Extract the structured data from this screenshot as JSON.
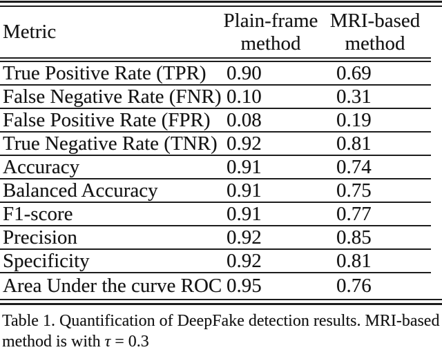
{
  "table": {
    "header": {
      "metric": "Metric",
      "plain_line1": "Plain-frame",
      "plain_line2": "method",
      "mri_line1": "MRI-based",
      "mri_line2": "method"
    },
    "rows": [
      {
        "metric": "True Positive Rate (TPR)",
        "plain": "0.90",
        "mri": "0.69"
      },
      {
        "metric": "False Negative Rate (FNR)",
        "plain": "0.10",
        "mri": "0.31"
      },
      {
        "metric": "False Positive Rate (FPR)",
        "plain": "0.08",
        "mri": "0.19"
      },
      {
        "metric": "True Negative Rate (TNR)",
        "plain": "0.92",
        "mri": "0.81"
      },
      {
        "metric": "Accuracy",
        "plain": "0.91",
        "mri": "0.74"
      },
      {
        "metric": "Balanced Accuracy",
        "plain": "0.91",
        "mri": "0.75"
      },
      {
        "metric": "F1-score",
        "plain": "0.91",
        "mri": "0.77"
      },
      {
        "metric": "Precision",
        "plain": "0.92",
        "mri": "0.85"
      },
      {
        "metric": "Specificity",
        "plain": "0.92",
        "mri": "0.81"
      },
      {
        "metric": "Area Under the curve ROC",
        "plain": "0.95",
        "mri": "0.76"
      }
    ]
  },
  "caption": {
    "line1": "Table 1. Quantification of DeepFake detection results. MRI-based",
    "line2_prefix": "method is with ",
    "tau": "τ",
    "line2_suffix": " = 0.3"
  },
  "colors": {
    "text": "#131313",
    "rule": "#1c1c1c",
    "background": "#ffffff"
  }
}
